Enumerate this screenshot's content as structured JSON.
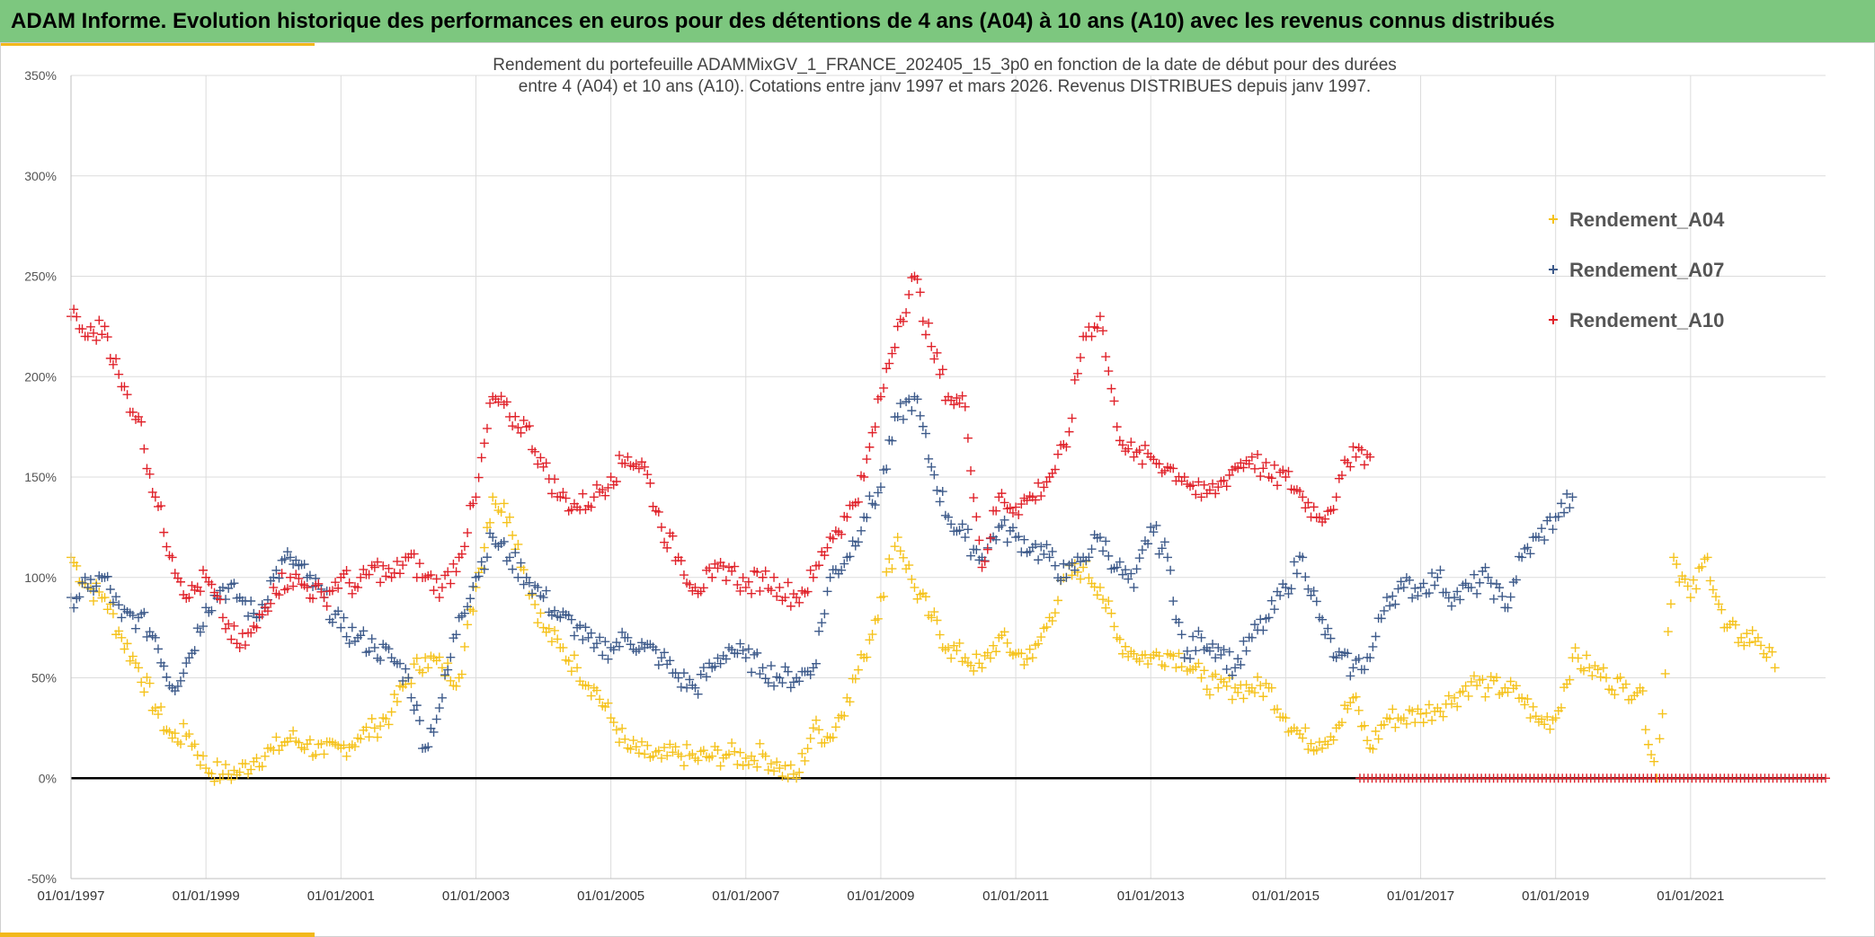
{
  "header": {
    "title": "ADAM Informe. Evolution historique des performances en euros pour des détentions de 4 ans (A04) à 10 ans (A10) avec les revenus connus distribués"
  },
  "colors": {
    "banner": "#7dc77f",
    "accent": "#f2b81b",
    "A04": "#f5c21b",
    "A07": "#3d5a8a",
    "A10": "#e0222a"
  },
  "chart_data": {
    "type": "scatter",
    "title_line1": "Rendement du portefeuille ADAMMixGV_1_FRANCE_202405_15_3p0  en fonction de la date de début pour des durées",
    "title_line2": "entre 4 (A04) et 10 ans (A10). Cotations entre janv 1997 et mars 2026. Revenus DISTRIBUES depuis janv 1997.",
    "xlabel": "",
    "ylabel": "",
    "xlim": [
      1997.0,
      2023.0
    ],
    "ylim": [
      -50,
      350
    ],
    "y_ticks": [
      -50,
      0,
      50,
      100,
      150,
      200,
      250,
      300,
      350
    ],
    "y_tick_labels": [
      "-50%",
      "0%",
      "50%",
      "100%",
      "150%",
      "200%",
      "250%",
      "300%",
      "350%"
    ],
    "x_ticks": [
      1997,
      1999,
      2001,
      2003,
      2005,
      2007,
      2009,
      2011,
      2013,
      2015,
      2017,
      2019,
      2021
    ],
    "x_tick_labels": [
      "01/01/1997",
      "01/01/1999",
      "01/01/2001",
      "01/01/2003",
      "01/01/2005",
      "01/01/2007",
      "01/01/2009",
      "01/01/2011",
      "01/01/2013",
      "01/01/2015",
      "01/01/2017",
      "01/01/2019",
      "01/01/2021"
    ],
    "grid": true,
    "legend_position": "top-right",
    "marker": "+",
    "series": [
      {
        "name": "Rendement_A04",
        "color": "#f5c21b",
        "x": [
          1997.0,
          1997.25,
          1997.5,
          1997.75,
          1998.0,
          1998.25,
          1998.5,
          1998.75,
          1999.0,
          1999.25,
          1999.5,
          1999.75,
          2000.0,
          2000.25,
          2000.5,
          2000.75,
          2001.0,
          2001.25,
          2001.5,
          2001.75,
          2002.0,
          2002.25,
          2002.5,
          2002.75,
          2003.0,
          2003.25,
          2003.5,
          2003.75,
          2004.0,
          2004.25,
          2004.5,
          2004.75,
          2005.0,
          2005.25,
          2005.5,
          2005.75,
          2006.0,
          2006.25,
          2006.5,
          2006.75,
          2007.0,
          2007.25,
          2007.5,
          2007.75,
          2008.0,
          2008.25,
          2008.5,
          2008.75,
          2009.0,
          2009.25,
          2009.5,
          2009.75,
          2010.0,
          2010.25,
          2010.5,
          2010.75,
          2011.0,
          2011.25,
          2011.5,
          2011.75,
          2012.0,
          2012.25,
          2012.5,
          2012.75,
          2013.0,
          2013.25,
          2013.5,
          2013.75,
          2014.0,
          2014.25,
          2014.5,
          2014.75,
          2015.0,
          2015.25,
          2015.5,
          2015.75,
          2016.0,
          2016.25,
          2016.5,
          2016.75,
          2017.0,
          2017.25,
          2017.5,
          2017.75,
          2018.0,
          2018.25,
          2018.5,
          2018.75,
          2019.0,
          2019.25,
          2019.5,
          2019.75,
          2020.0,
          2020.25,
          2020.5,
          2020.75,
          2021.0,
          2021.25,
          2021.5,
          2021.75,
          2022.0,
          2022.25
        ],
        "values": [
          110,
          95,
          90,
          70,
          55,
          35,
          20,
          22,
          5,
          2,
          3,
          10,
          14,
          20,
          17,
          12,
          15,
          20,
          25,
          33,
          50,
          60,
          55,
          50,
          95,
          140,
          130,
          100,
          75,
          65,
          55,
          45,
          30,
          15,
          12,
          10,
          12,
          10,
          11,
          12,
          10,
          12,
          5,
          0,
          25,
          20,
          40,
          60,
          90,
          120,
          95,
          80,
          65,
          60,
          55,
          70,
          62,
          60,
          80,
          100,
          105,
          95,
          70,
          62,
          60,
          62,
          60,
          50,
          45,
          45,
          45,
          45,
          30,
          20,
          18,
          25,
          40,
          15,
          30,
          30,
          32,
          35,
          40,
          48,
          45,
          45,
          40,
          28,
          30,
          60,
          55,
          50,
          45,
          45,
          0,
          110,
          90,
          110,
          75,
          70,
          70,
          55
        ]
      },
      {
        "name": "Rendement_A07",
        "color": "#3d5a8a",
        "x": [
          1997.0,
          1997.25,
          1997.5,
          1997.75,
          1998.0,
          1998.25,
          1998.5,
          1998.75,
          1999.0,
          1999.25,
          1999.5,
          1999.75,
          2000.0,
          2000.25,
          2000.5,
          2000.75,
          2001.0,
          2001.25,
          2001.5,
          2001.75,
          2002.0,
          2002.25,
          2002.5,
          2002.75,
          2003.0,
          2003.25,
          2003.5,
          2003.75,
          2004.0,
          2004.25,
          2004.5,
          2004.75,
          2005.0,
          2005.25,
          2005.5,
          2005.75,
          2006.0,
          2006.25,
          2006.5,
          2006.75,
          2007.0,
          2007.25,
          2007.5,
          2007.75,
          2008.0,
          2008.25,
          2008.5,
          2008.75,
          2009.0,
          2009.25,
          2009.5,
          2009.75,
          2010.0,
          2010.25,
          2010.5,
          2010.75,
          2011.0,
          2011.25,
          2011.5,
          2011.75,
          2012.0,
          2012.25,
          2012.5,
          2012.75,
          2013.0,
          2013.25,
          2013.5,
          2013.75,
          2014.0,
          2014.25,
          2014.5,
          2014.75,
          2015.0,
          2015.25,
          2015.5,
          2015.75,
          2016.0,
          2016.25,
          2016.5,
          2016.75,
          2017.0,
          2017.25,
          2017.5,
          2017.75,
          2018.0,
          2018.25,
          2018.5,
          2018.75,
          2019.0,
          2019.25
        ],
        "values": [
          90,
          95,
          100,
          80,
          80,
          70,
          45,
          60,
          85,
          95,
          90,
          80,
          100,
          110,
          100,
          90,
          75,
          70,
          65,
          60,
          50,
          15,
          40,
          80,
          100,
          120,
          110,
          100,
          90,
          80,
          75,
          65,
          65,
          70,
          65,
          60,
          50,
          45,
          55,
          65,
          60,
          55,
          50,
          50,
          55,
          100,
          110,
          130,
          145,
          180,
          190,
          155,
          130,
          120,
          110,
          125,
          120,
          115,
          110,
          100,
          110,
          120,
          105,
          95,
          125,
          110,
          60,
          70,
          65,
          55,
          70,
          80,
          95,
          110,
          80,
          60,
          55,
          60,
          90,
          95,
          95,
          100,
          90,
          95,
          100,
          85,
          110,
          120,
          130,
          140
        ]
      },
      {
        "name": "Rendement_A10",
        "color": "#e0222a",
        "x": [
          1997.0,
          1997.25,
          1997.5,
          1997.75,
          1998.0,
          1998.25,
          1998.5,
          1998.75,
          1999.0,
          1999.25,
          1999.5,
          1999.75,
          2000.0,
          2000.25,
          2000.5,
          2000.75,
          2001.0,
          2001.25,
          2001.5,
          2001.75,
          2002.0,
          2002.25,
          2002.5,
          2002.75,
          2003.0,
          2003.25,
          2003.5,
          2003.75,
          2004.0,
          2004.25,
          2004.5,
          2004.75,
          2005.0,
          2005.25,
          2005.5,
          2005.75,
          2006.0,
          2006.25,
          2006.5,
          2006.75,
          2007.0,
          2007.25,
          2007.5,
          2007.75,
          2008.0,
          2008.25,
          2008.5,
          2008.75,
          2009.0,
          2009.25,
          2009.5,
          2009.75,
          2010.0,
          2010.25,
          2010.5,
          2010.75,
          2011.0,
          2011.25,
          2011.5,
          2011.75,
          2012.0,
          2012.25,
          2012.5,
          2012.75,
          2013.0,
          2013.25,
          2013.5,
          2013.75,
          2014.0,
          2014.25,
          2014.5,
          2014.75,
          2015.0,
          2015.25,
          2015.5,
          2015.75,
          2016.0,
          2016.25
        ],
        "values": [
          230,
          220,
          225,
          195,
          180,
          140,
          110,
          90,
          100,
          80,
          65,
          75,
          95,
          100,
          95,
          90,
          100,
          95,
          105,
          100,
          110,
          100,
          95,
          110,
          140,
          190,
          180,
          175,
          155,
          140,
          135,
          140,
          150,
          160,
          155,
          125,
          110,
          95,
          100,
          105,
          95,
          100,
          95,
          90,
          100,
          120,
          130,
          150,
          190,
          225,
          250,
          215,
          190,
          185,
          105,
          140,
          135,
          140,
          150,
          165,
          220,
          230,
          175,
          160,
          160,
          155,
          150,
          140,
          145,
          155,
          160,
          150,
          150,
          140,
          130,
          140,
          165,
          160
        ]
      }
    ],
    "annotations": [
      "zero-return band (0%) from 2016 to 2023, series Rendement_A10"
    ]
  }
}
